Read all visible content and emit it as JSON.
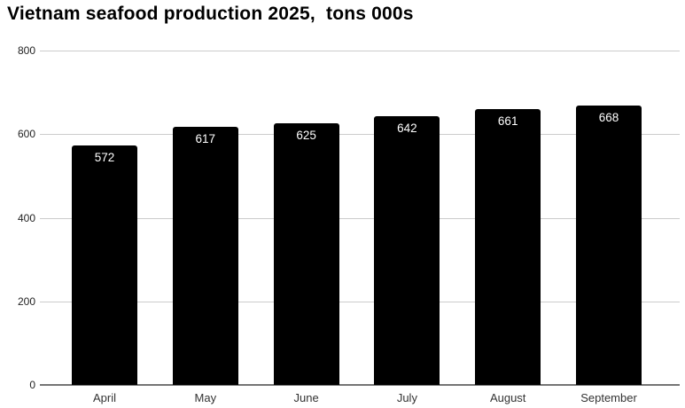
{
  "title": "Vietnam seafood production 2025,  tons 000s",
  "chart_data": {
    "type": "bar",
    "title": "Vietnam seafood production 2025,  tons 000s",
    "categories": [
      "April",
      "May",
      "June",
      "July",
      "August",
      "September"
    ],
    "values": [
      572,
      617,
      625,
      642,
      661,
      668
    ],
    "xlabel": "",
    "ylabel": "",
    "ylim": [
      0,
      800
    ],
    "yticks": [
      0,
      200,
      400,
      600,
      800
    ],
    "grid": true,
    "legend": "none",
    "colors": {
      "bar": "#000000",
      "value_label": "#ffffff",
      "gridline": "#cccccc",
      "axis_line": "#757575",
      "tick_label": "#222222",
      "category_label": "#333333",
      "title": "#000000",
      "background": "#ffffff"
    }
  }
}
